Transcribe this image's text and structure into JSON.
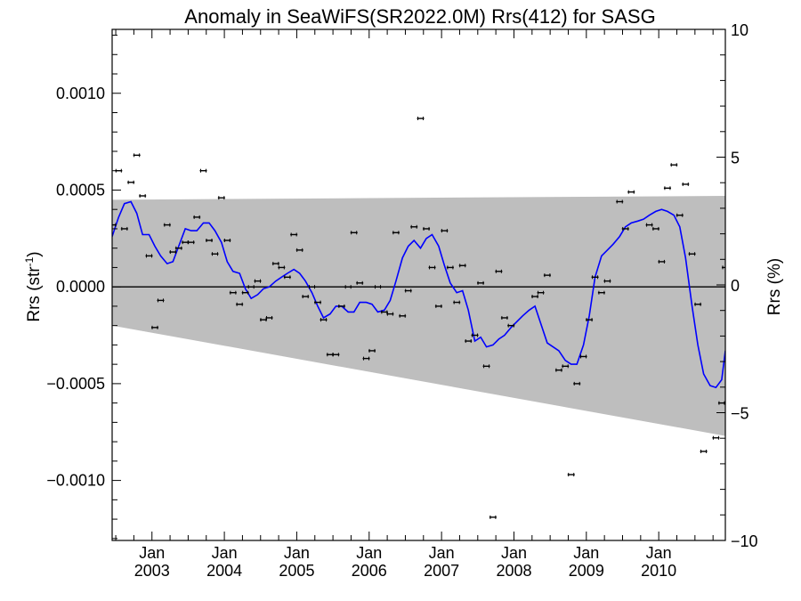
{
  "chart_data": {
    "type": "scatter",
    "title": "Anomaly in SeaWiFS(SR2022.0M) Rrs(412) for SASG",
    "ylabel_left_main": "Rrs (str",
    "ylabel_left_sup": "-1",
    "ylabel_left_end": ")",
    "ylabel_right": "Rrs (%)",
    "x_range": [
      2002.45,
      2010.92
    ],
    "ylim_left": [
      -0.00131,
      0.00133
    ],
    "ylim_right": [
      -10,
      10
    ],
    "y_ticks_left": [
      {
        "v": 0.001,
        "label": "0.0010"
      },
      {
        "v": 0.0005,
        "label": "0.0005"
      },
      {
        "v": 0.0,
        "label": "0.0000"
      },
      {
        "v": -0.0005,
        "label": "−0.0005"
      },
      {
        "v": -0.001,
        "label": "−0.0010"
      }
    ],
    "y_ticks_right": [
      {
        "v": 10,
        "label": "10"
      },
      {
        "v": 5,
        "label": "5"
      },
      {
        "v": 0,
        "label": "0"
      },
      {
        "v": -5,
        "label": "−5"
      },
      {
        "v": -10,
        "label": "−10"
      }
    ],
    "x_ticks": [
      {
        "v": 2003.0,
        "month": "Jan",
        "year": "2003"
      },
      {
        "v": 2004.0,
        "month": "Jan",
        "year": "2004"
      },
      {
        "v": 2005.0,
        "month": "Jan",
        "year": "2005"
      },
      {
        "v": 2006.0,
        "month": "Jan",
        "year": "2006"
      },
      {
        "v": 2007.0,
        "month": "Jan",
        "year": "2007"
      },
      {
        "v": 2008.0,
        "month": "Jan",
        "year": "2008"
      },
      {
        "v": 2009.0,
        "month": "Jan",
        "year": "2009"
      },
      {
        "v": 2010.0,
        "month": "Jan",
        "year": "2010"
      }
    ],
    "band": {
      "upper": [
        [
          2002.45,
          0.00045
        ],
        [
          2010.92,
          0.00047
        ]
      ],
      "lower": [
        [
          2002.45,
          -0.0002
        ],
        [
          2010.92,
          -0.00077
        ]
      ]
    },
    "zero_line": 0.0,
    "points": [
      [
        2002.46,
        0.00032
      ],
      [
        2002.54,
        0.0006
      ],
      [
        2002.62,
        0.0003
      ],
      [
        2002.71,
        0.00054
      ],
      [
        2002.79,
        0.00068
      ],
      [
        2002.87,
        0.00047
      ],
      [
        2002.96,
        0.00016
      ],
      [
        2003.04,
        -0.00021
      ],
      [
        2003.12,
        -7e-05
      ],
      [
        2003.21,
        0.00032
      ],
      [
        2003.29,
        0.00018
      ],
      [
        2003.37,
        0.0002
      ],
      [
        2003.46,
        0.00023
      ],
      [
        2003.54,
        0.00023
      ],
      [
        2003.62,
        0.00036
      ],
      [
        2003.71,
        0.0006
      ],
      [
        2003.79,
        0.00024
      ],
      [
        2003.87,
        0.00017
      ],
      [
        2003.96,
        0.00046
      ],
      [
        2004.04,
        0.00024
      ],
      [
        2004.12,
        -3e-05
      ],
      [
        2004.21,
        -9e-05
      ],
      [
        2004.29,
        -3e-05
      ],
      [
        2004.37,
        0.0
      ],
      [
        2004.46,
        3e-05
      ],
      [
        2004.54,
        -0.00017
      ],
      [
        2004.62,
        -0.00016
      ],
      [
        2004.71,
        0.00012
      ],
      [
        2004.79,
        0.0001
      ],
      [
        2004.87,
        5e-05
      ],
      [
        2004.96,
        0.00027
      ],
      [
        2005.04,
        0.00019
      ],
      [
        2005.12,
        -5e-05
      ],
      [
        2005.21,
        0.0
      ],
      [
        2005.29,
        -8e-05
      ],
      [
        2005.37,
        -0.00017
      ],
      [
        2005.46,
        -0.00035
      ],
      [
        2005.54,
        -0.00035
      ],
      [
        2005.62,
        -0.0001
      ],
      [
        2005.71,
        0.0
      ],
      [
        2005.79,
        0.00028
      ],
      [
        2005.87,
        2e-05
      ],
      [
        2005.96,
        -0.00037
      ],
      [
        2006.04,
        -0.00033
      ],
      [
        2006.12,
        0.0
      ],
      [
        2006.21,
        -0.00013
      ],
      [
        2006.29,
        -0.00014
      ],
      [
        2006.37,
        0.00028
      ],
      [
        2006.46,
        -0.00015
      ],
      [
        2006.54,
        -2e-05
      ],
      [
        2006.62,
        0.00031
      ],
      [
        2006.71,
        0.00087
      ],
      [
        2006.79,
        0.0003
      ],
      [
        2006.87,
        0.0001
      ],
      [
        2006.96,
        -0.0001
      ],
      [
        2007.04,
        0.00029
      ],
      [
        2007.12,
        0.0001
      ],
      [
        2007.21,
        -8e-05
      ],
      [
        2007.29,
        0.00011
      ],
      [
        2007.37,
        -0.00028
      ],
      [
        2007.46,
        -0.00025
      ],
      [
        2007.54,
        2e-05
      ],
      [
        2007.62,
        -0.00041
      ],
      [
        2007.71,
        -0.00119
      ],
      [
        2007.79,
        8e-05
      ],
      [
        2007.87,
        -0.00016
      ],
      [
        2007.96,
        -0.0002
      ],
      [
        2008.29,
        -5e-05
      ],
      [
        2008.37,
        -3e-05
      ],
      [
        2008.46,
        6e-05
      ],
      [
        2008.62,
        -0.00043
      ],
      [
        2008.71,
        -0.00041
      ],
      [
        2008.79,
        -0.00097
      ],
      [
        2008.87,
        -0.0005
      ],
      [
        2008.96,
        -0.00036
      ],
      [
        2009.04,
        -0.00017
      ],
      [
        2009.12,
        5e-05
      ],
      [
        2009.21,
        -3e-05
      ],
      [
        2009.29,
        3e-05
      ],
      [
        2009.46,
        0.00044
      ],
      [
        2009.54,
        0.0003
      ],
      [
        2009.62,
        0.00049
      ],
      [
        2009.87,
        0.00032
      ],
      [
        2009.96,
        0.0003
      ],
      [
        2010.04,
        0.00013
      ],
      [
        2010.12,
        0.00051
      ],
      [
        2010.21,
        0.00063
      ],
      [
        2010.29,
        0.00037
      ],
      [
        2010.37,
        0.00053
      ],
      [
        2010.46,
        0.00017
      ],
      [
        2010.54,
        -9e-05
      ],
      [
        2010.62,
        -0.00085
      ],
      [
        2010.79,
        -0.00078
      ],
      [
        2010.87,
        -0.0006
      ],
      [
        2010.92,
        0.0001
      ]
    ],
    "smooth": [
      [
        2002.45,
        0.00026
      ],
      [
        2002.54,
        0.00036
      ],
      [
        2002.62,
        0.00043
      ],
      [
        2002.71,
        0.00044
      ],
      [
        2002.79,
        0.00038
      ],
      [
        2002.87,
        0.00027
      ],
      [
        2002.96,
        0.00027
      ],
      [
        2003.04,
        0.00021
      ],
      [
        2003.12,
        0.00016
      ],
      [
        2003.21,
        0.00012
      ],
      [
        2003.29,
        0.00013
      ],
      [
        2003.37,
        0.00021
      ],
      [
        2003.46,
        0.0003
      ],
      [
        2003.54,
        0.00029
      ],
      [
        2003.62,
        0.00029
      ],
      [
        2003.71,
        0.00033
      ],
      [
        2003.79,
        0.00033
      ],
      [
        2003.87,
        0.00029
      ],
      [
        2003.96,
        0.00023
      ],
      [
        2004.04,
        0.00013
      ],
      [
        2004.12,
        8e-05
      ],
      [
        2004.21,
        7e-05
      ],
      [
        2004.29,
        -1e-05
      ],
      [
        2004.37,
        -6e-05
      ],
      [
        2004.46,
        -4e-05
      ],
      [
        2004.54,
        -1e-05
      ],
      [
        2004.62,
        0.0
      ],
      [
        2004.71,
        3e-05
      ],
      [
        2004.79,
        5e-05
      ],
      [
        2004.87,
        7e-05
      ],
      [
        2004.96,
        9e-05
      ],
      [
        2005.04,
        7e-05
      ],
      [
        2005.12,
        3e-05
      ],
      [
        2005.21,
        -3e-05
      ],
      [
        2005.29,
        -0.0001
      ],
      [
        2005.37,
        -0.00016
      ],
      [
        2005.46,
        -0.00014
      ],
      [
        2005.54,
        -0.0001
      ],
      [
        2005.62,
        -0.0001
      ],
      [
        2005.71,
        -0.00013
      ],
      [
        2005.79,
        -0.00013
      ],
      [
        2005.87,
        -8e-05
      ],
      [
        2005.96,
        -8e-05
      ],
      [
        2006.04,
        -9e-05
      ],
      [
        2006.12,
        -0.00013
      ],
      [
        2006.21,
        -0.00012
      ],
      [
        2006.29,
        -7e-05
      ],
      [
        2006.37,
        3e-05
      ],
      [
        2006.46,
        0.00015
      ],
      [
        2006.54,
        0.00021
      ],
      [
        2006.62,
        0.00024
      ],
      [
        2006.71,
        0.0002
      ],
      [
        2006.79,
        0.00025
      ],
      [
        2006.87,
        0.00027
      ],
      [
        2006.96,
        0.00021
      ],
      [
        2007.04,
        0.00011
      ],
      [
        2007.12,
        2e-05
      ],
      [
        2007.21,
        -3e-05
      ],
      [
        2007.29,
        -2e-05
      ],
      [
        2007.37,
        -0.00012
      ],
      [
        2007.46,
        -0.00028
      ],
      [
        2007.54,
        -0.00026
      ],
      [
        2007.62,
        -0.00031
      ],
      [
        2007.71,
        -0.0003
      ],
      [
        2007.79,
        -0.00027
      ],
      [
        2007.87,
        -0.00025
      ],
      [
        2007.96,
        -0.00021
      ],
      [
        2008.04,
        -0.00018
      ],
      [
        2008.12,
        -0.00015
      ],
      [
        2008.21,
        -0.00012
      ],
      [
        2008.29,
        -0.0001
      ],
      [
        2008.46,
        -0.00029
      ],
      [
        2008.62,
        -0.00033
      ],
      [
        2008.71,
        -0.00038
      ],
      [
        2008.79,
        -0.0004
      ],
      [
        2008.87,
        -0.0004
      ],
      [
        2008.96,
        -0.0003
      ],
      [
        2009.04,
        -0.00015
      ],
      [
        2009.12,
        5e-05
      ],
      [
        2009.21,
        0.00016
      ],
      [
        2009.29,
        0.00019
      ],
      [
        2009.37,
        0.00022
      ],
      [
        2009.46,
        0.00026
      ],
      [
        2009.54,
        0.00031
      ],
      [
        2009.62,
        0.00033
      ],
      [
        2009.71,
        0.00034
      ],
      [
        2009.79,
        0.00035
      ],
      [
        2009.87,
        0.00037
      ],
      [
        2009.96,
        0.00039
      ],
      [
        2010.04,
        0.0004
      ],
      [
        2010.12,
        0.00039
      ],
      [
        2010.21,
        0.00037
      ],
      [
        2010.29,
        0.00031
      ],
      [
        2010.37,
        0.00015
      ],
      [
        2010.46,
        -0.0001
      ],
      [
        2010.54,
        -0.0003
      ],
      [
        2010.62,
        -0.00045
      ],
      [
        2010.71,
        -0.00051
      ],
      [
        2010.79,
        -0.00052
      ],
      [
        2010.87,
        -0.00048
      ],
      [
        2010.92,
        -0.00033
      ]
    ],
    "colors": {
      "band": "#bebebe",
      "smooth": "#0000ff",
      "points": "#000000",
      "axes": "#000000"
    }
  }
}
